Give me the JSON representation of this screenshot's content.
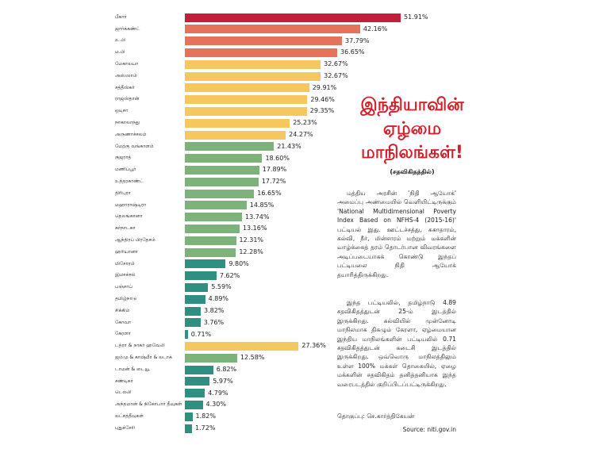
{
  "chart_data": {
    "type": "bar",
    "orientation": "horizontal",
    "title": "இந்தியாவின் ஏழ்மை மாநிலங்கள்!",
    "subtitle": "(சதவிகிதத்தில்)",
    "categories": [
      "பீகார்",
      "ஜார்க்கண்ட்",
      "உ.பி",
      "ம.பி",
      "மேகாலயா",
      "அஸ்ஸாம்",
      "சத்தீஸ்கர்",
      "ராஜஸ்தான்",
      "ஒடிசா",
      "நாகாலாந்து",
      "அருணாச்சலம்",
      "மேற்கு வங்காளம்",
      "குஜராத்",
      "மணிப்பூர்",
      "உத்தரகாண்ட்",
      "திரிபுரா",
      "மஹாராஷ்டிரா",
      "தெலங்கானா",
      "கர்நாடகா",
      "ஆந்திரப் பிரதேசம்",
      "ஹரியானா",
      "மிசோரம்",
      "இமாச்சல்",
      "பஞ்சாப்",
      "தமிழ்நாடு",
      "சிக்கிம்",
      "கோவா",
      "கேரளா",
      "டத்ரா & நாகர் ஹவேலி",
      "ஜம்மு & காஷ்மீர் & லடாக்",
      "டாமன் & டையூ",
      "சண்டிகர்",
      "டெல்லி",
      "அந்தமான் & நிகோபார் தீவுகள்",
      "லட்சத்தீவுகள்",
      "புதுச்சேரி"
    ],
    "values": [
      51.91,
      42.16,
      37.79,
      36.65,
      32.67,
      32.67,
      29.91,
      29.46,
      29.35,
      25.23,
      24.27,
      21.43,
      18.6,
      17.89,
      17.72,
      16.65,
      14.85,
      13.74,
      13.16,
      12.31,
      12.28,
      9.8,
      7.62,
      5.59,
      4.89,
      3.82,
      3.76,
      0.71,
      27.36,
      12.58,
      6.82,
      5.97,
      4.79,
      4.3,
      1.82,
      1.72
    ],
    "value_labels": [
      "51.91%",
      "42.16%",
      "37.79%",
      "36.65%",
      "32.67%",
      "32.67%",
      "29.91%",
      "29.46%",
      "29.35%",
      "25.23%",
      "24.27%",
      "21.43%",
      "18.60%",
      "17.89%",
      "17.72%",
      "16.65%",
      "14.85%",
      "13.74%",
      "13.16%",
      "12.31%",
      "12.28%",
      "9.80%",
      "7.62%",
      "5.59%",
      "4.89%",
      "3.82%",
      "3.76%",
      "0.71%",
      "27.36%",
      "12.58%",
      "6.82%",
      "5.97%",
      "4.79%",
      "4.30%",
      "1.82%",
      "1.72%"
    ],
    "colors": [
      "#c41e3a",
      "#e5735b",
      "#e5735b",
      "#e5735b",
      "#f4c85f",
      "#f4c85f",
      "#f4c85f",
      "#f4c85f",
      "#f4c85f",
      "#f4c85f",
      "#f4c85f",
      "#7db37a",
      "#7db37a",
      "#7db37a",
      "#7db37a",
      "#7db37a",
      "#7db37a",
      "#7db37a",
      "#7db37a",
      "#7db37a",
      "#7db37a",
      "#2f8f80",
      "#2f8f80",
      "#2f8f80",
      "#2f8f80",
      "#2f8f80",
      "#2f8f80",
      "#2f8f80",
      "#f4c85f",
      "#7db37a",
      "#2f8f80",
      "#2f8f80",
      "#2f8f80",
      "#2f8f80",
      "#2f8f80",
      "#2f8f80"
    ]
  },
  "article": {
    "paragraphs": [
      "மத்திய அரசின் 'நிதி ஆயோக்' அமைப்பு அண்மையில் வெளியிட்டிருக்கும் 'National Multidimensional Poverty Index Based on NFHS-4 (2015-16)' பட்டியல் இது. ஊட்டச்சத்து, சுகாதாரம், கல்வி, நீர், மின்சாரம் மற்றும் மக்களின் வாழ்க்கைத் தரம் தொடர்பான விவரங்களை அடிப்படையாகக் கொண்டு இந்தப் பட்டியலை நிதி ஆயோக் தயாரித்திருக்கிறது.",
      "இந்த பட்டியலில், தமிழ்நாடு 4.89 சதவிகிதத்துடன் 25-ம் இடத்தில் இருக்கிறது. கல்வியில் முன்னோடி மாநிலமாக திகழும் கேரளா, ஏழ்மையான இந்திய மாநிலங்களின் பட்டியலில் 0.71 சதவிகிதத்துடன் கடைசி இடத்தில் இருக்கிறது. ஒவ்வொரு மாநிலத்திலும் உள்ள 100% மக்கள் தொகையில், ஏழை மக்களின் சதவிகிதம் தனித்தனியாக இந்த வரைபடத்தில் குறிப்பிடப்பட்டிருக்கிறது."
    ],
    "credit": "தொகுப்பு: செ.கார்த்திகேயன்",
    "source": "Source: niti.gov.in"
  }
}
